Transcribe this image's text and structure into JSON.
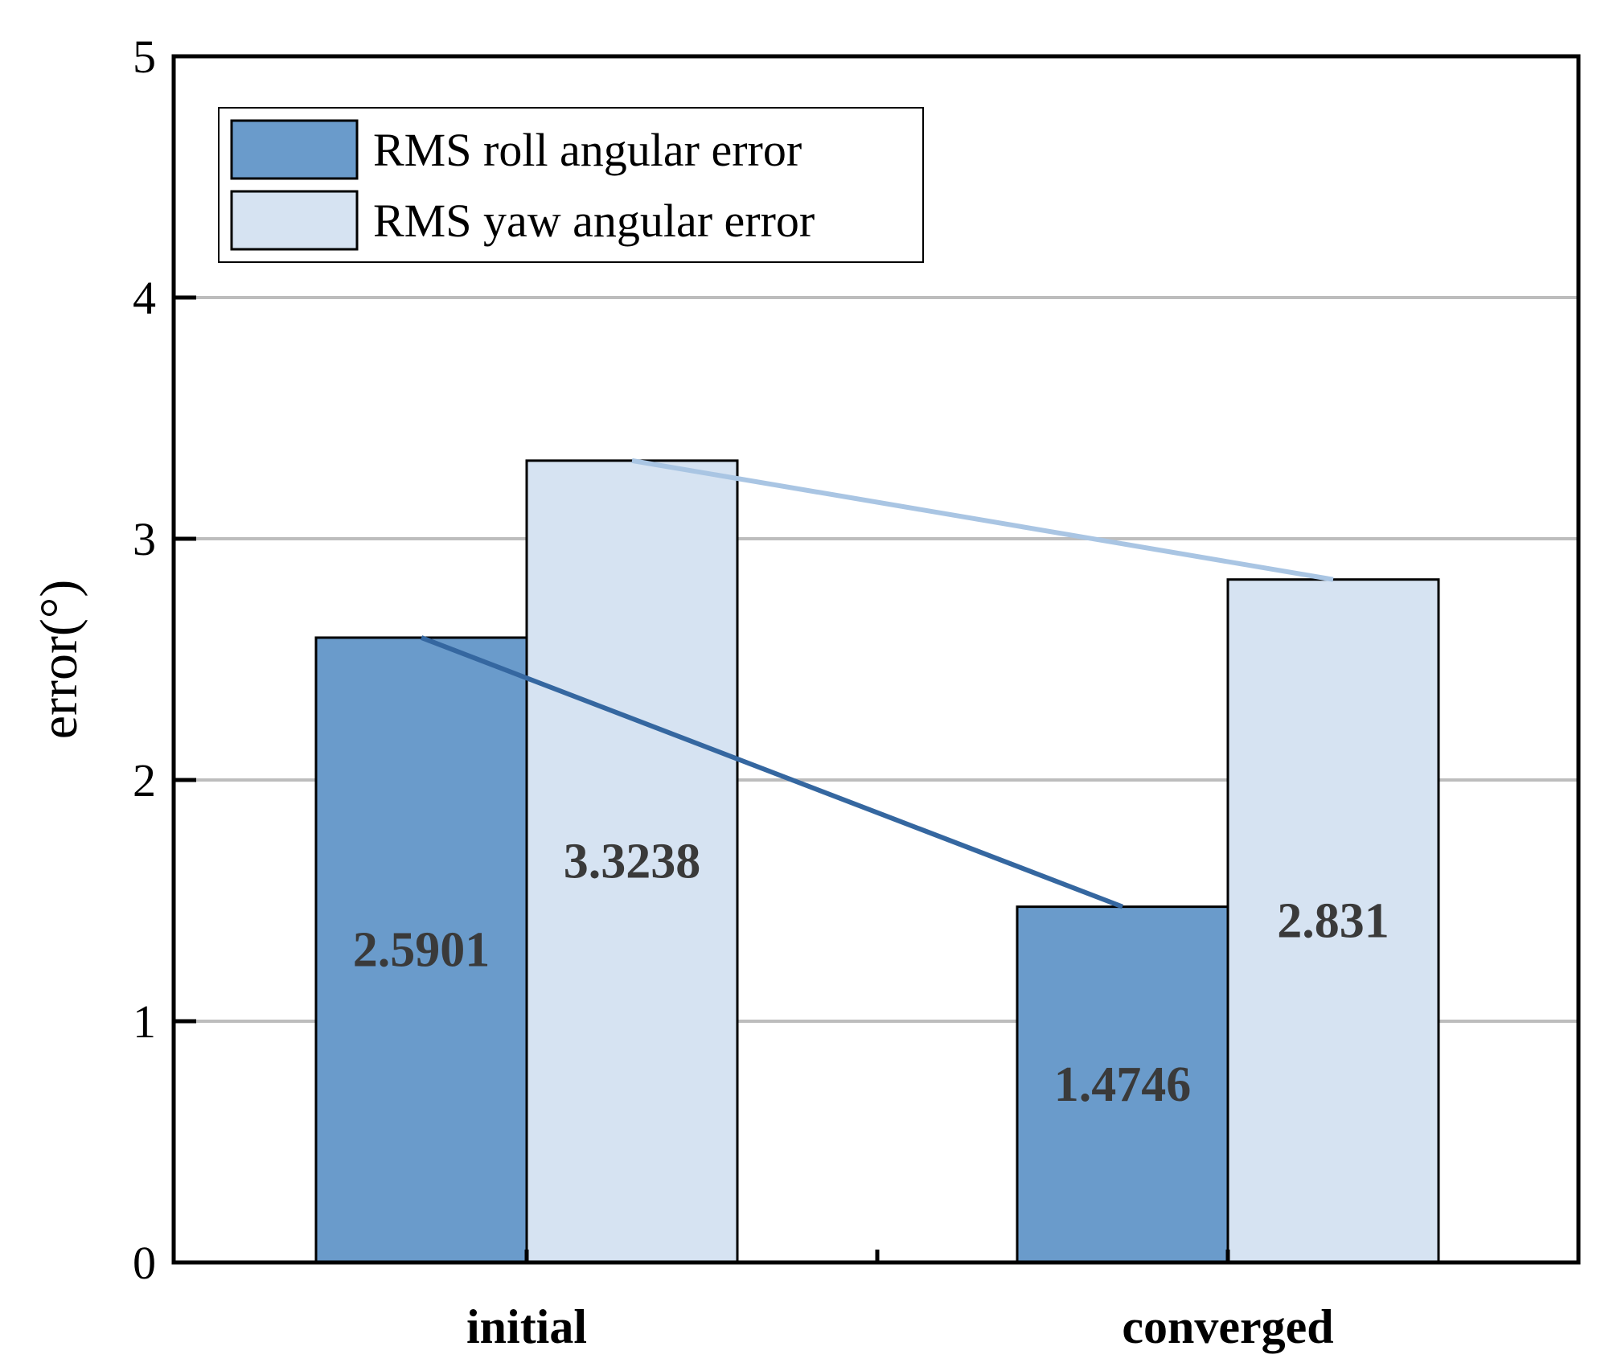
{
  "chart_data": {
    "type": "bar",
    "categories": [
      "initial",
      "converged"
    ],
    "series": [
      {
        "name": "RMS roll angular error",
        "values": [
          2.5901,
          1.4746
        ],
        "color": "#6a9bcb",
        "line_color": "#3567a0"
      },
      {
        "name": "RMS yaw angular error",
        "values": [
          3.3238,
          2.831
        ],
        "color": "#d6e3f2",
        "line_color": "#a9c5e3"
      }
    ],
    "data_labels": [
      [
        "2.5901",
        "1.4746"
      ],
      [
        "3.3238",
        "2.831"
      ]
    ],
    "title": "",
    "xlabel": "",
    "ylabel": "error(°)",
    "ylim": [
      0,
      5
    ],
    "yticks": [
      0,
      1,
      2,
      3,
      4,
      5
    ],
    "grid": true,
    "legend": "top-left",
    "connecting_lines": true
  }
}
